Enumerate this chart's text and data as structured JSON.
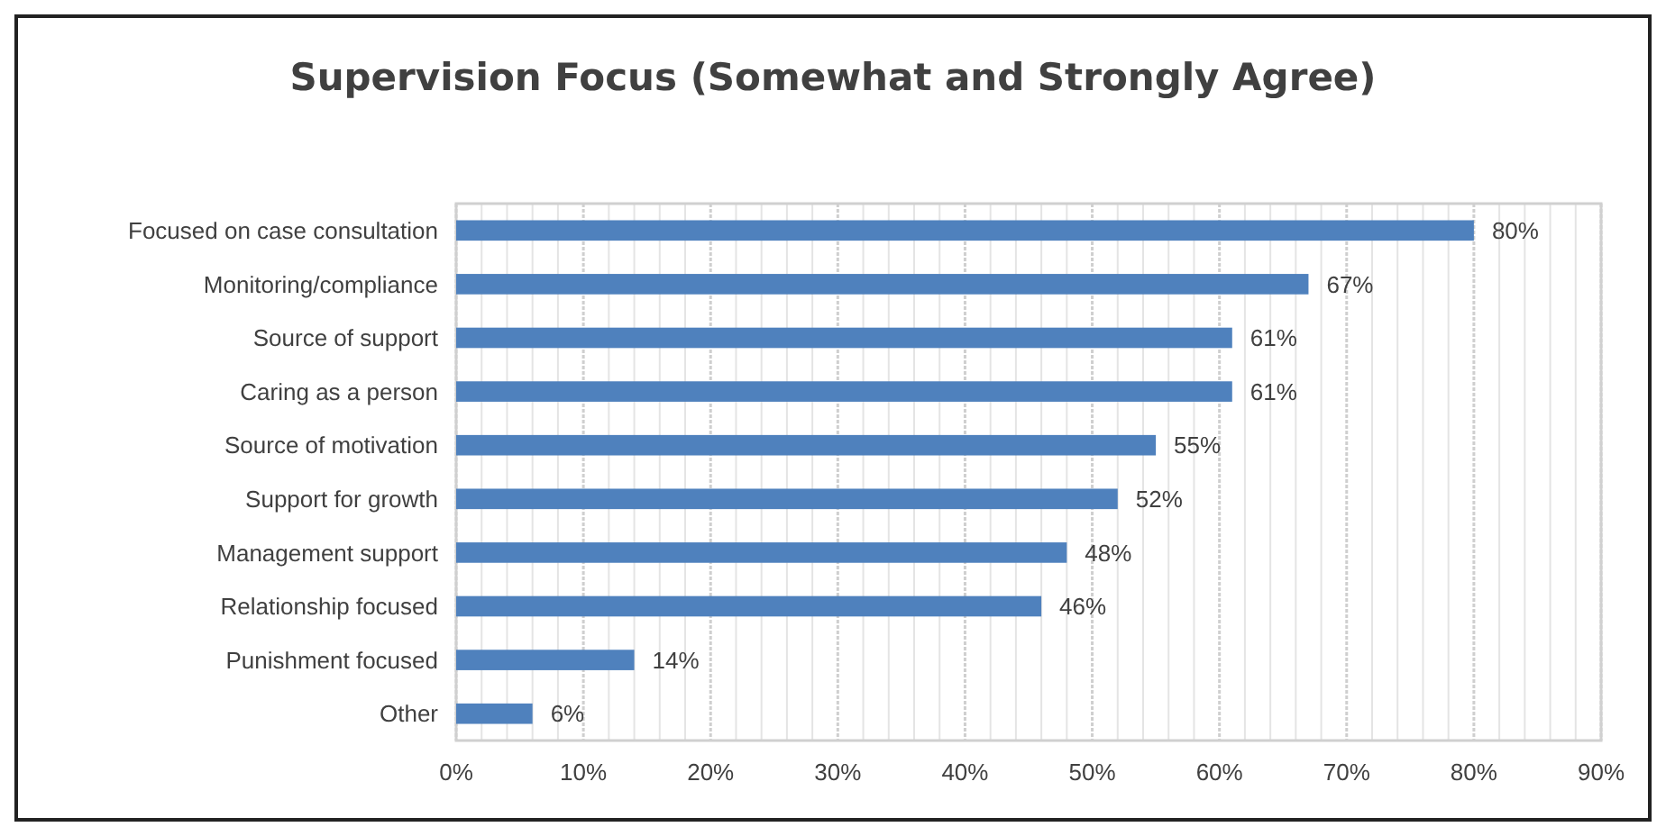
{
  "chart_data": {
    "type": "bar",
    "orientation": "horizontal",
    "title": "Supervision Focus (Somewhat and Strongly Agree)",
    "categories": [
      "Focused on case consultation",
      "Monitoring/compliance",
      "Source of support",
      "Caring as a person",
      "Source of motivation",
      "Support for growth",
      "Management support",
      "Relationship focused",
      "Punishment focused",
      "Other"
    ],
    "values": [
      80,
      67,
      61,
      61,
      55,
      52,
      48,
      46,
      14,
      6
    ],
    "value_labels": [
      "80%",
      "67%",
      "61%",
      "61%",
      "55%",
      "52%",
      "48%",
      "46%",
      "14%",
      "6%"
    ],
    "color": "#4f81bd",
    "xlim": [
      0,
      90
    ],
    "xticks": [
      {
        "value": 0,
        "label": "0%"
      },
      {
        "value": 2,
        "label": null
      },
      {
        "value": 4,
        "label": null
      },
      {
        "value": 6,
        "label": null
      },
      {
        "value": 8,
        "label": null
      },
      {
        "value": 10,
        "label": "10%"
      },
      {
        "value": 12,
        "label": null
      },
      {
        "value": 14,
        "label": null
      },
      {
        "value": 16,
        "label": null
      },
      {
        "value": 18,
        "label": null
      },
      {
        "value": 20,
        "label": "20%"
      },
      {
        "value": 22,
        "label": null
      },
      {
        "value": 24,
        "label": null
      },
      {
        "value": 26,
        "label": null
      },
      {
        "value": 28,
        "label": null
      },
      {
        "value": 30,
        "label": "30%"
      },
      {
        "value": 32,
        "label": null
      },
      {
        "value": 34,
        "label": null
      },
      {
        "value": 36,
        "label": null
      },
      {
        "value": 38,
        "label": null
      },
      {
        "value": 40,
        "label": "40%"
      },
      {
        "value": 42,
        "label": null
      },
      {
        "value": 44,
        "label": null
      },
      {
        "value": 46,
        "label": null
      },
      {
        "value": 48,
        "label": null
      },
      {
        "value": 50,
        "label": "50%"
      },
      {
        "value": 52,
        "label": null
      },
      {
        "value": 54,
        "label": null
      },
      {
        "value": 56,
        "label": null
      },
      {
        "value": 58,
        "label": null
      },
      {
        "value": 60,
        "label": "60%"
      },
      {
        "value": 62,
        "label": null
      },
      {
        "value": 64,
        "label": null
      },
      {
        "value": 66,
        "label": null
      },
      {
        "value": 68,
        "label": null
      },
      {
        "value": 70,
        "label": "70%"
      },
      {
        "value": 72,
        "label": null
      },
      {
        "value": 74,
        "label": null
      },
      {
        "value": 76,
        "label": null
      },
      {
        "value": 78,
        "label": null
      },
      {
        "value": 80,
        "label": "80%"
      },
      {
        "value": 82,
        "label": null
      },
      {
        "value": 84,
        "label": null
      },
      {
        "value": 86,
        "label": null
      },
      {
        "value": 88,
        "label": null
      },
      {
        "value": 90,
        "label": "90%"
      }
    ],
    "grid": "x"
  }
}
